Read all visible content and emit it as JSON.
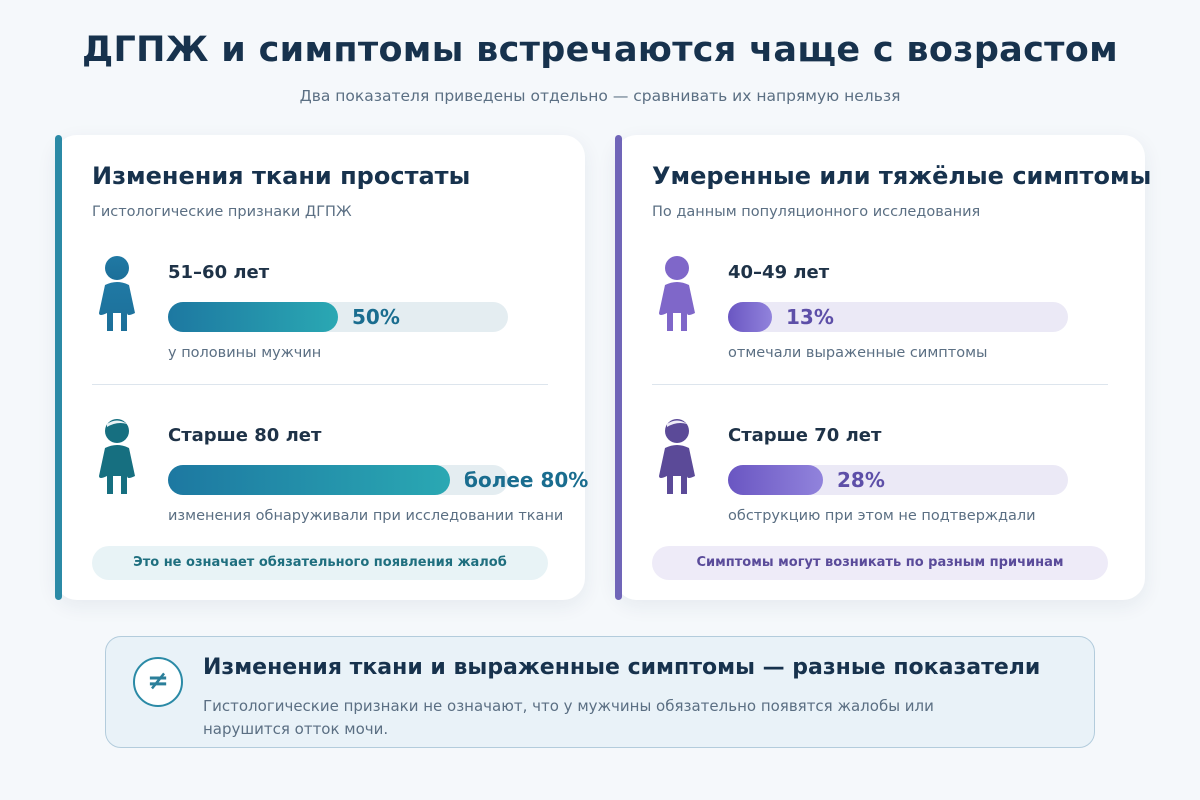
{
  "header": {
    "title": "ДГПЖ и симптомы встречаются чаще с возрастом",
    "subtitle": "Два показателя приведены отдельно — сравнивать их напрямую нельзя"
  },
  "colors": {
    "teal_accent": "#2b8aa6",
    "purple_accent": "#7065b8",
    "heading": "#17324d"
  },
  "cards": [
    {
      "title": "Изменения ткани простаты",
      "subtitle": "Гистологические признаки ДГПЖ",
      "rows": [
        {
          "icon": "person-icon",
          "age": "51–60 лет",
          "value_label": "50%",
          "fraction": 0.5,
          "desc": "у половины мужчин"
        },
        {
          "icon": "elderly-person-icon",
          "age": "Старше 80 лет",
          "value_label": "более 80%",
          "fraction": 0.83,
          "desc": "изменения обнаруживали при исследовании ткани"
        }
      ],
      "footer": "Это не означает обязательного появления жалоб"
    },
    {
      "title": "Умеренные или тяжёлые симптомы",
      "subtitle": "По данным популяционного исследования",
      "rows": [
        {
          "icon": "person-icon",
          "age": "40–49 лет",
          "value_label": "13%",
          "fraction": 0.13,
          "desc": "отмечали выраженные симптомы"
        },
        {
          "icon": "elderly-person-icon",
          "age": "Старше 70 лет",
          "value_label": "28%",
          "fraction": 0.28,
          "desc": "обструкцию при этом не подтверждали"
        }
      ],
      "footer": "Симптомы могут возникать по разным причинам"
    }
  ],
  "note": {
    "icon": "not-equal-icon",
    "symbol": "≠",
    "title": "Изменения ткани и выраженные симптомы — разные показатели",
    "text": "Гистологические признаки не означают, что у мужчины обязательно появятся жалобы или нарушится отток мочи."
  }
}
